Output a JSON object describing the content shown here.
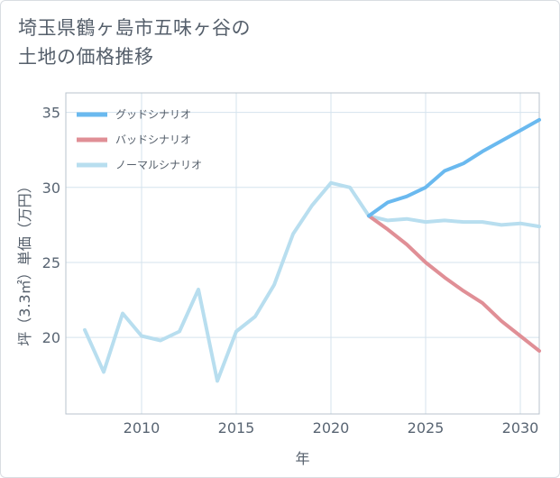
{
  "title_line1": "埼玉県鶴ヶ島市五味ヶ谷の",
  "title_line2": "土地の価格推移",
  "colors": {
    "good": "#6ab9ef",
    "bad": "#e08f96",
    "normal": "#b8deef",
    "grid": "#d4e3ee",
    "plot_border": "#b9c3cc"
  },
  "chart_data": {
    "type": "line",
    "title": "埼玉県鶴ヶ島市五味ヶ谷の土地の価格推移",
    "xlabel": "年",
    "ylabel": "坪（3.3㎡）単価（万円）",
    "xlim": [
      2006,
      2031
    ],
    "ylim": [
      14.9,
      36.3
    ],
    "x_ticks": [
      2010,
      2015,
      2020,
      2025,
      2030
    ],
    "y_ticks": [
      20,
      25,
      30,
      35
    ],
    "legend_position": "top-left",
    "grid": true,
    "series": [
      {
        "name": "グッドシナリオ",
        "color_key": "good",
        "x": [
          2022,
          2023,
          2024,
          2025,
          2026,
          2027,
          2028,
          2029,
          2030,
          2031
        ],
        "y": [
          28.1,
          29.0,
          29.4,
          30.0,
          31.1,
          31.6,
          32.4,
          33.1,
          33.8,
          34.5
        ]
      },
      {
        "name": "バッドシナリオ",
        "color_key": "bad",
        "x": [
          2022,
          2023,
          2024,
          2025,
          2026,
          2027,
          2028,
          2029,
          2030,
          2031
        ],
        "y": [
          28.1,
          27.2,
          26.2,
          25.0,
          24.0,
          23.1,
          22.3,
          21.1,
          20.1,
          19.1
        ]
      },
      {
        "name": "ノーマルシナリオ",
        "color_key": "normal",
        "x": [
          2007,
          2008,
          2009,
          2010,
          2011,
          2012,
          2013,
          2014,
          2015,
          2016,
          2017,
          2018,
          2019,
          2020,
          2021,
          2022,
          2023,
          2024,
          2025,
          2026,
          2027,
          2028,
          2029,
          2030,
          2031
        ],
        "y": [
          20.5,
          17.7,
          21.6,
          20.1,
          19.8,
          20.4,
          23.2,
          17.1,
          20.4,
          21.4,
          23.5,
          26.9,
          28.8,
          30.3,
          30.0,
          28.1,
          27.8,
          27.9,
          27.7,
          27.8,
          27.7,
          27.7,
          27.5,
          27.6,
          27.4
        ]
      }
    ]
  }
}
